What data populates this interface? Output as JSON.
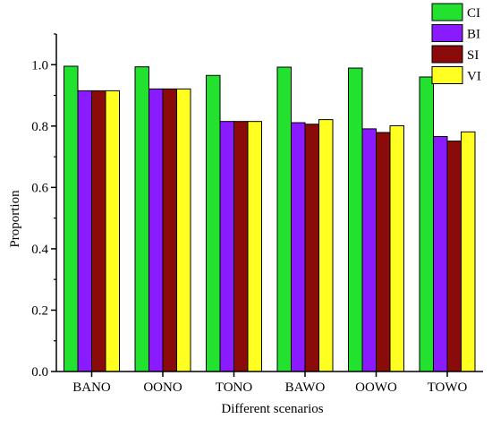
{
  "chart_data": {
    "type": "bar",
    "title": "",
    "xlabel": "Different scenarios",
    "ylabel": "Proportion",
    "ylim": [
      0,
      1.1
    ],
    "yticks": [
      "0.0",
      "0.2",
      "0.4",
      "0.6",
      "0.8",
      "1.0"
    ],
    "categories": [
      "BANO",
      "OONO",
      "TONO",
      "BAWO",
      "OOWO",
      "TOWO"
    ],
    "series": [
      {
        "name": "CI",
        "color": "#22e22f",
        "values": [
          0.995,
          0.993,
          0.965,
          0.992,
          0.989,
          0.96
        ]
      },
      {
        "name": "BI",
        "color": "#8a1bff",
        "values": [
          0.915,
          0.921,
          0.815,
          0.811,
          0.791,
          0.766
        ]
      },
      {
        "name": "SI",
        "color": "#8b0a0a",
        "values": [
          0.915,
          0.921,
          0.815,
          0.806,
          0.779,
          0.751
        ]
      },
      {
        "name": "VI",
        "color": "#ffff22",
        "values": [
          0.915,
          0.921,
          0.815,
          0.821,
          0.801,
          0.781
        ]
      }
    ],
    "grid": false,
    "legend_position": "top-right"
  }
}
